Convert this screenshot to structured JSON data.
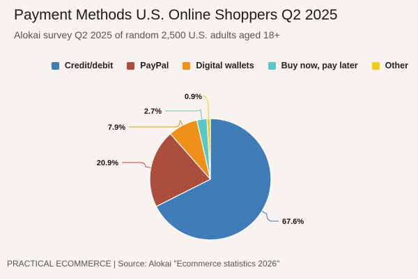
{
  "title": "Payment Methods U.S. Online Shoppers Q2 2025",
  "subtitle": "Alokai survey Q2 2025 of random 2,500 U.S. adults aged 18+",
  "footer": "PRACTICAL ECOMMERCE | Source: Alokai \"Ecommerce statistics 2026\"",
  "chart_data": {
    "type": "pie",
    "title": "Payment Methods U.S. Online Shoppers Q2 2025",
    "legend_position": "top-right",
    "start": "12 o'clock, clockwise",
    "categories": [
      "Credit/debit",
      "PayPal",
      "Digital wallets",
      "Buy now, pay later",
      "Other"
    ],
    "values": [
      67.6,
      20.9,
      7.9,
      2.7,
      0.9
    ],
    "labels": [
      "67.6%",
      "20.9%",
      "7.9%",
      "2.7%",
      "0.9%"
    ],
    "colors": [
      "#3f7cb8",
      "#ab4e3e",
      "#ef9018",
      "#5bc8c8",
      "#f2cc14"
    ]
  }
}
